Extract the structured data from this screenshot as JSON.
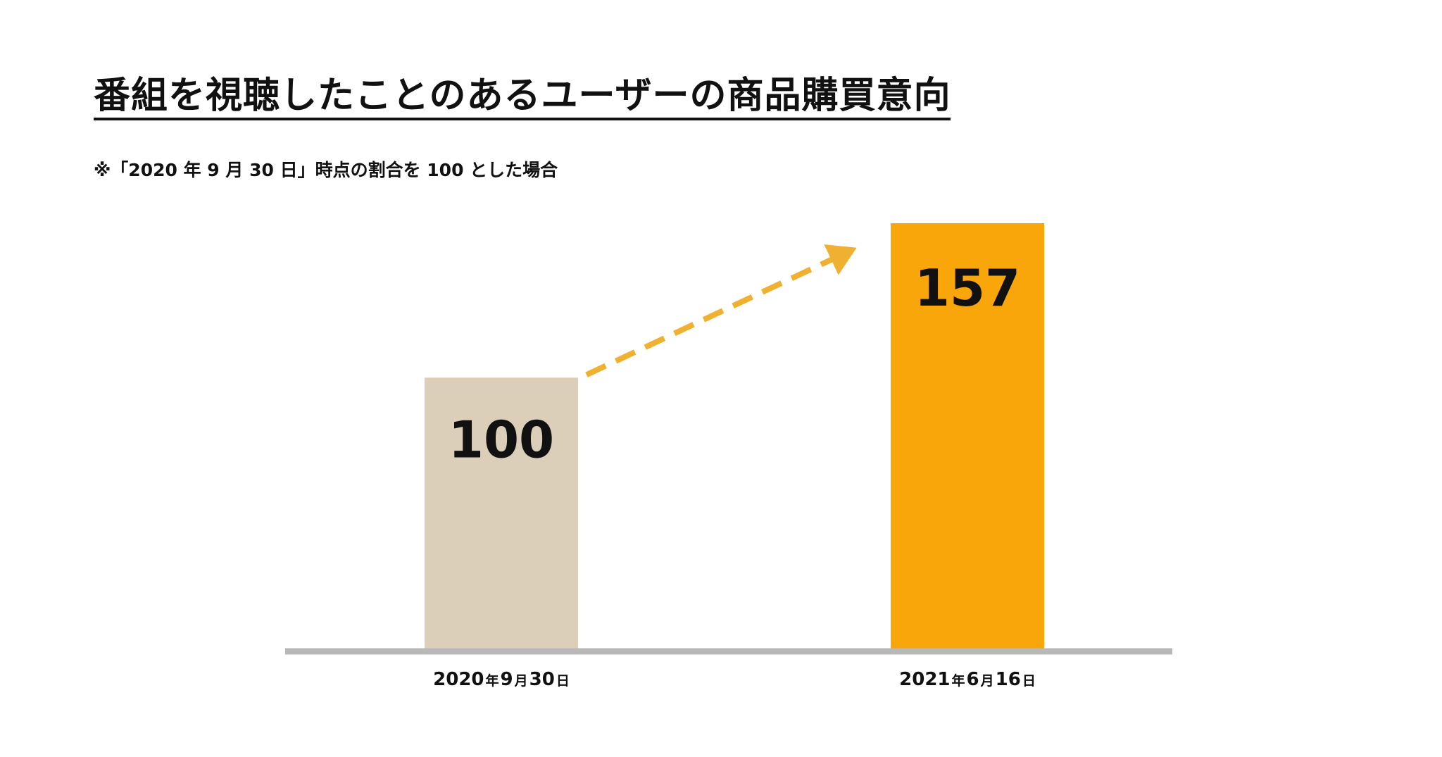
{
  "title": "番組を視聴したことのあるユーザーの商品購買意向",
  "note": "※「2020 年 9 月 30 日」時点の割合を 100 とした場合",
  "chart_data": {
    "type": "bar",
    "title": "番組を視聴したことのあるユーザーの商品購買意向",
    "xlabel": "",
    "ylabel": "",
    "ylim": [
      0,
      157
    ],
    "grid": false,
    "legend": "none",
    "categories": [
      {
        "year": "2020",
        "year_unit": "年",
        "month": "9",
        "month_unit": "月",
        "day": "30",
        "day_unit": "日"
      },
      {
        "year": "2021",
        "year_unit": "年",
        "month": "6",
        "month_unit": "月",
        "day": "16",
        "day_unit": "日"
      }
    ],
    "values": [
      100,
      157
    ],
    "data_labels": [
      "100",
      "157"
    ],
    "colors": [
      "#dccfba",
      "#f9a60a"
    ],
    "annotation": "dashed arrow from 100 to 157 (increase)",
    "arrow_color": "#f0b030",
    "baseline_color": "#b8b8b8"
  }
}
